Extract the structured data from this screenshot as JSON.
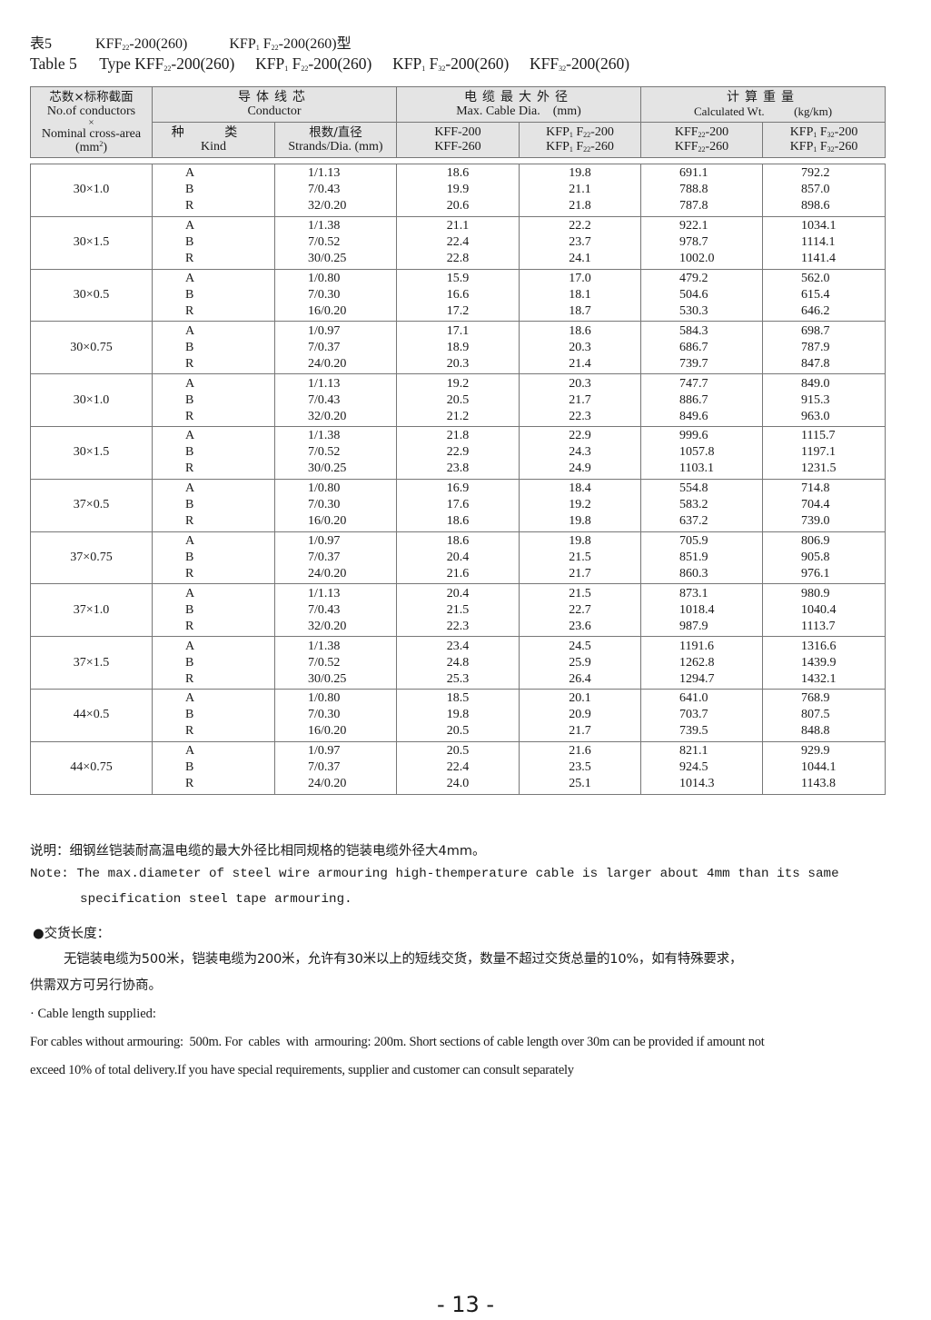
{
  "title_cn": {
    "label": "表5",
    "types": [
      [
        {
          "t": "KFF"
        },
        {
          "sub": "22"
        },
        {
          "t": "-200(260)"
        }
      ],
      [
        {
          "t": "KFP"
        },
        {
          "sub": "1"
        },
        {
          "t": " F"
        },
        {
          "sub": "22"
        },
        {
          "t": "-200(260)型"
        }
      ]
    ]
  },
  "title_en": {
    "label": "Table 5",
    "types": [
      [
        {
          "t": "Type KFF"
        },
        {
          "sub": "22"
        },
        {
          "t": "-200(260)"
        }
      ],
      [
        {
          "t": "KFP"
        },
        {
          "sub": "1"
        },
        {
          "t": " F"
        },
        {
          "sub": "22"
        },
        {
          "t": "-200(260)"
        }
      ],
      [
        {
          "t": "KFP"
        },
        {
          "sub": "1"
        },
        {
          "t": " F"
        },
        {
          "sub": "32"
        },
        {
          "t": "-200(260)"
        }
      ],
      [
        {
          "t": "KFF"
        },
        {
          "sub": "32"
        },
        {
          "t": "-200(260)"
        }
      ]
    ]
  },
  "header": {
    "size_cn": "芯数×标称截面",
    "size_en1": "No.of conductors",
    "size_x": "×",
    "size_en2": "Nominal cross-area",
    "size_unit": [
      {
        "t": "(mm"
      },
      {
        "sup": "2"
      },
      {
        "t": ")"
      }
    ],
    "conductor_cn": "导体线芯",
    "conductor_en": "Conductor",
    "dia_cn": "电缆最大外径",
    "dia_en": "Max. Cable Dia.    (mm)",
    "wt_cn": "计算重量",
    "wt_en": "Calculated Wt.          (kg/km)",
    "kind_cn": "种 类",
    "kind_en": "Kind",
    "strands_cn": "根数/直径",
    "strands_en": "Strands/Dia. (mm)",
    "col_kff": [
      [
        {
          "t": "KFF-200"
        }
      ],
      [
        {
          "t": "KFF-260"
        }
      ]
    ],
    "col_kfp22": [
      [
        {
          "t": "KFP"
        },
        {
          "sub": "1"
        },
        {
          "t": " F"
        },
        {
          "sub": "22"
        },
        {
          "t": "-200"
        }
      ],
      [
        {
          "t": "KFP"
        },
        {
          "sub": "1"
        },
        {
          "t": " F"
        },
        {
          "sub": "22"
        },
        {
          "t": "-260"
        }
      ]
    ],
    "col_kff22": [
      [
        {
          "t": "KFF"
        },
        {
          "sub": "22"
        },
        {
          "t": "-200"
        }
      ],
      [
        {
          "t": "KFF"
        },
        {
          "sub": "22"
        },
        {
          "t": "-260"
        }
      ]
    ],
    "col_kfp32": [
      [
        {
          "t": "KFP"
        },
        {
          "sub": "1"
        },
        {
          "t": " F"
        },
        {
          "sub": "32"
        },
        {
          "t": "-200"
        }
      ],
      [
        {
          "t": "KFP"
        },
        {
          "sub": "1"
        },
        {
          "t": " F"
        },
        {
          "sub": "32"
        },
        {
          "t": "-260"
        }
      ]
    ]
  },
  "rows": [
    {
      "size": "30×1.0",
      "kind": [
        "A",
        "B",
        "R"
      ],
      "strands": [
        "1/1.13",
        "7/0.43",
        "32/0.20"
      ],
      "kff": [
        "18.6",
        "19.9",
        "20.6"
      ],
      "kfp22": [
        "19.8",
        "21.1",
        "21.8"
      ],
      "kff22": [
        "691.1",
        "788.8",
        "787.8"
      ],
      "kfp32": [
        "792.2",
        "857.0",
        "898.6"
      ]
    },
    {
      "size": "30×1.5",
      "kind": [
        "A",
        "B",
        "R"
      ],
      "strands": [
        "1/1.38",
        "7/0.52",
        "30/0.25"
      ],
      "kff": [
        "21.1",
        "22.4",
        "22.8"
      ],
      "kfp22": [
        "22.2",
        "23.7",
        "24.1"
      ],
      "kff22": [
        "922.1",
        "978.7",
        "1002.0"
      ],
      "kfp32": [
        "1034.1",
        "1114.1",
        "1141.4"
      ]
    },
    {
      "size": "30×0.5",
      "kind": [
        "A",
        "B",
        "R"
      ],
      "strands": [
        "1/0.80",
        "7/0.30",
        "16/0.20"
      ],
      "kff": [
        "15.9",
        "16.6",
        "17.2"
      ],
      "kfp22": [
        "17.0",
        "18.1",
        "18.7"
      ],
      "kff22": [
        "479.2",
        "504.6",
        "530.3"
      ],
      "kfp32": [
        "562.0",
        "615.4",
        "646.2"
      ]
    },
    {
      "size": "30×0.75",
      "kind": [
        "A",
        "B",
        "R"
      ],
      "strands": [
        "1/0.97",
        "7/0.37",
        "24/0.20"
      ],
      "kff": [
        "17.1",
        "18.9",
        "20.3"
      ],
      "kfp22": [
        "18.6",
        "20.3",
        "21.4"
      ],
      "kff22": [
        "584.3",
        "686.7",
        "739.7"
      ],
      "kfp32": [
        "698.7",
        "787.9",
        "847.8"
      ]
    },
    {
      "size": "30×1.0",
      "kind": [
        "A",
        "B",
        "R"
      ],
      "strands": [
        "1/1.13",
        "7/0.43",
        "32/0.20"
      ],
      "kff": [
        "19.2",
        "20.5",
        "21.2"
      ],
      "kfp22": [
        "20.3",
        "21.7",
        "22.3"
      ],
      "kff22": [
        "747.7",
        "886.7",
        "849.6"
      ],
      "kfp32": [
        "849.0",
        "915.3",
        "963.0"
      ]
    },
    {
      "size": "30×1.5",
      "kind": [
        "A",
        "B",
        "R"
      ],
      "strands": [
        "1/1.38",
        "7/0.52",
        "30/0.25"
      ],
      "kff": [
        "21.8",
        "22.9",
        "23.8"
      ],
      "kfp22": [
        "22.9",
        "24.3",
        "24.9"
      ],
      "kff22": [
        "999.6",
        "1057.8",
        "1103.1"
      ],
      "kfp32": [
        "1115.7",
        "1197.1",
        "1231.5"
      ]
    },
    {
      "size": "37×0.5",
      "kind": [
        "A",
        "B",
        "R"
      ],
      "strands": [
        "1/0.80",
        "7/0.30",
        "16/0.20"
      ],
      "kff": [
        "16.9",
        "17.6",
        "18.6"
      ],
      "kfp22": [
        "18.4",
        "19.2",
        "19.8"
      ],
      "kff22": [
        "554.8",
        "583.2",
        "637.2"
      ],
      "kfp32": [
        "714.8",
        "704.4",
        "739.0"
      ]
    },
    {
      "size": "37×0.75",
      "kind": [
        "A",
        "B",
        "R"
      ],
      "strands": [
        "1/0.97",
        "7/0.37",
        "24/0.20"
      ],
      "kff": [
        "18.6",
        "20.4",
        "21.6"
      ],
      "kfp22": [
        "19.8",
        "21.5",
        "21.7"
      ],
      "kff22": [
        "705.9",
        "851.9",
        "860.3"
      ],
      "kfp32": [
        "806.9",
        "905.8",
        "976.1"
      ]
    },
    {
      "size": "37×1.0",
      "kind": [
        "A",
        "B",
        "R"
      ],
      "strands": [
        "1/1.13",
        "7/0.43",
        "32/0.20"
      ],
      "kff": [
        "20.4",
        "21.5",
        "22.3"
      ],
      "kfp22": [
        "21.5",
        "22.7",
        "23.6"
      ],
      "kff22": [
        "873.1",
        "1018.4",
        "987.9"
      ],
      "kfp32": [
        "980.9",
        "1040.4",
        "1113.7"
      ]
    },
    {
      "size": "37×1.5",
      "kind": [
        "A",
        "B",
        "R"
      ],
      "strands": [
        "1/1.38",
        "7/0.52",
        "30/0.25"
      ],
      "kff": [
        "23.4",
        "24.8",
        "25.3"
      ],
      "kfp22": [
        "24.5",
        "25.9",
        "26.4"
      ],
      "kff22": [
        "1191.6",
        "1262.8",
        "1294.7"
      ],
      "kfp32": [
        "1316.6",
        "1439.9",
        "1432.1"
      ]
    },
    {
      "size": "44×0.5",
      "kind": [
        "A",
        "B",
        "R"
      ],
      "strands": [
        "1/0.80",
        "7/0.30",
        "16/0.20"
      ],
      "kff": [
        "18.5",
        "19.8",
        "20.5"
      ],
      "kfp22": [
        "20.1",
        "20.9",
        "21.7"
      ],
      "kff22": [
        "641.0",
        "703.7",
        "739.5"
      ],
      "kfp32": [
        "768.9",
        "807.5",
        "848.8"
      ]
    },
    {
      "size": "44×0.75",
      "kind": [
        "A",
        "B",
        "R"
      ],
      "strands": [
        "1/0.97",
        "7/0.37",
        "24/0.20"
      ],
      "kff": [
        "20.5",
        "22.4",
        "24.0"
      ],
      "kfp22": [
        "21.6",
        "23.5",
        "25.1"
      ],
      "kff22": [
        "821.1",
        "924.5",
        "1014.3"
      ],
      "kfp32": [
        "929.9",
        "1044.1",
        "1143.8"
      ]
    }
  ],
  "notes": {
    "cn": "说明：细钢丝铠装耐高温电缆的最大外径比相同规格的铠装电缆外径大4mm。",
    "en_line1": "Note: The max.diameter of steel wire armouring high-themperature cable is larger about 4mm than its same",
    "en_line2": "specification steel tape armouring.",
    "delivery_heading_cn": "●交货长度：",
    "delivery_cn_line1": "无铠装电缆为500米，铠装电缆为200米，允许有30米以上的短线交货，数量不超过交货总量的10%，如有特殊要求，",
    "delivery_cn_line2": "供需双方可另行协商。",
    "delivery_heading_en": "· Cable length supplied:",
    "delivery_en_line1": "For cables without armouring:  500m. For  cables  with  armouring: 200m. Short sections of cable length over 30m can be provided if amount not",
    "delivery_en_line2": "exceed 10% of total delivery.If you have special requirements, supplier and customer can consult separately"
  },
  "page_number": "- 13 -"
}
